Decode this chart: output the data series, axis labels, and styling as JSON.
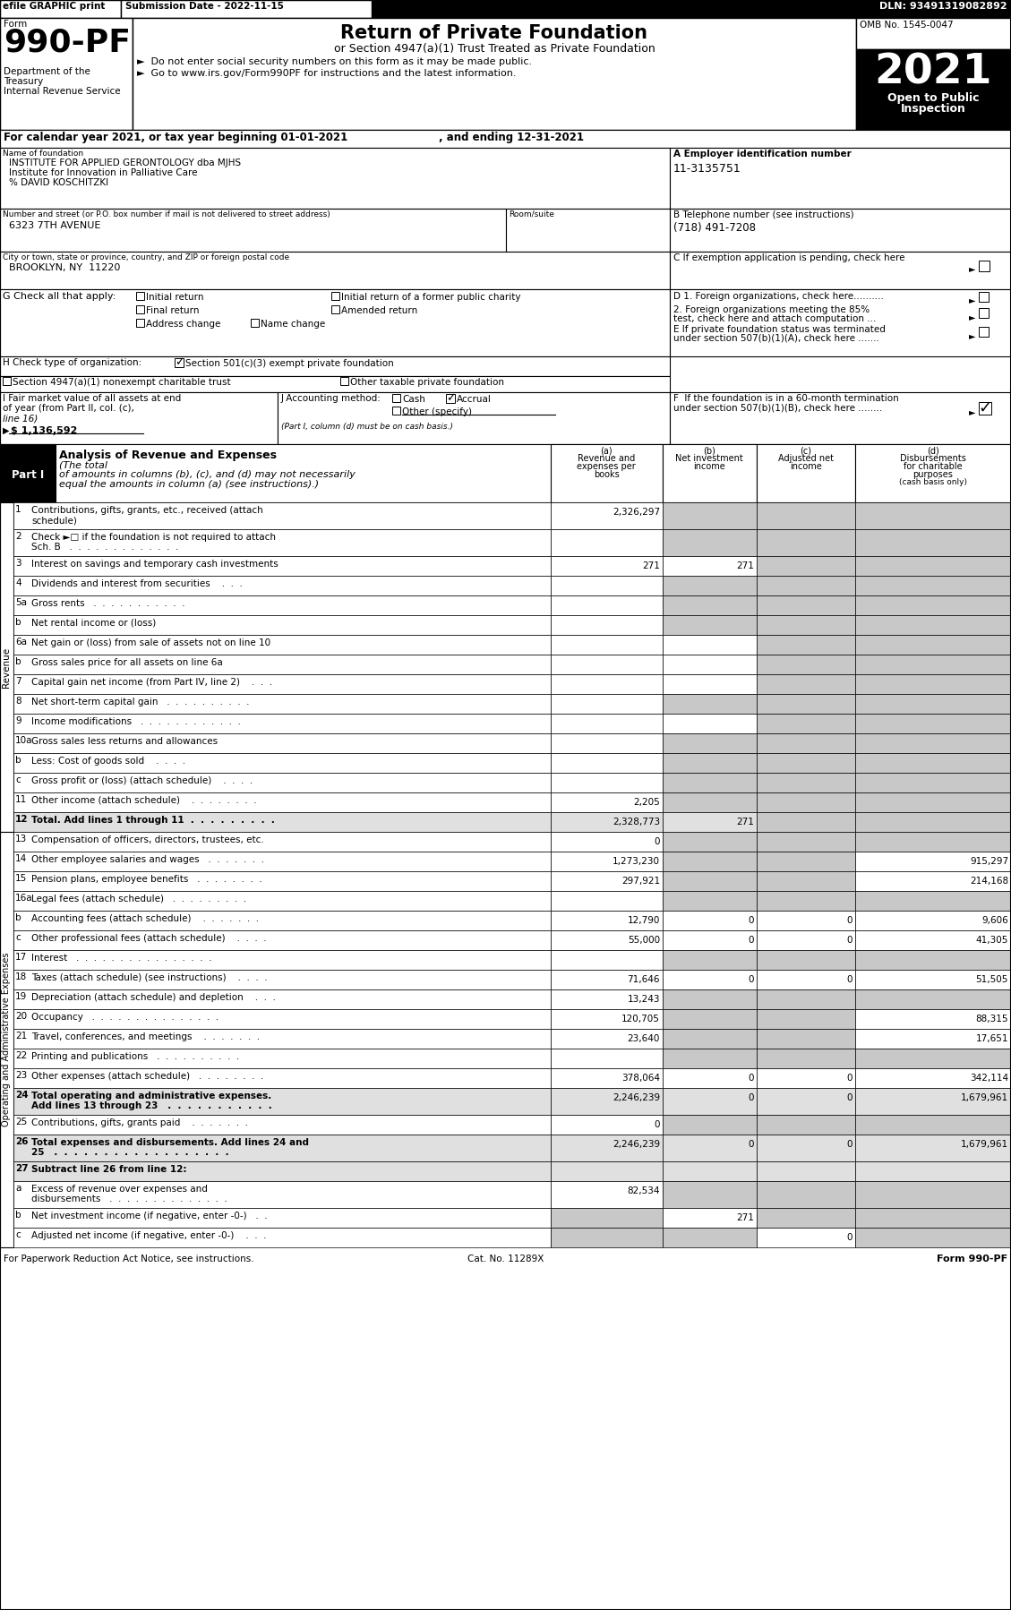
{
  "header_efile": "efile GRAPHIC print",
  "header_submission": "Submission Date - 2022-11-15",
  "header_dln": "DLN: 93491319082892",
  "form_number": "990-PF",
  "omb": "OMB No. 1545-0047",
  "title": "Return of Private Foundation",
  "subtitle": "or Section 4947(a)(1) Trust Treated as Private Foundation",
  "bullet1": "►  Do not enter social security numbers on this form as it may be made public.",
  "bullet2": "►  Go to www.irs.gov/Form990PF for instructions and the latest information.",
  "year": "2021",
  "open_public": "Open to Public\nInspection",
  "calendar_line1": "For calendar year 2021, or tax year beginning 01-01-2021",
  "calendar_line2": ", and ending 12-31-2021",
  "name_label": "Name of foundation",
  "name_line1": "INSTITUTE FOR APPLIED GERONTOLOGY dba MJHS",
  "name_line2": "Institute for Innovation in Palliative Care",
  "name_line3": "% DAVID KOSCHITZKI",
  "ein_label": "A Employer identification number",
  "ein": "11-3135751",
  "address_label": "Number and street (or P.O. box number if mail is not delivered to street address)",
  "address": "6323 7TH AVENUE",
  "room_label": "Room/suite",
  "phone_label": "B Telephone number (see instructions)",
  "phone": "(718) 491-7208",
  "city_label": "City or town, state or province, country, and ZIP or foreign postal code",
  "city": "BROOKLYN, NY  11220",
  "c_label": "C If exemption application is pending, check here",
  "g_label": "G Check all that apply:",
  "d1_label": "D 1. Foreign organizations, check here..........",
  "d2_line1": "2. Foreign organizations meeting the 85%",
  "d2_line2": "test, check here and attach computation ...",
  "e_line1": "E If private foundation status was terminated",
  "e_line2": "under section 507(b)(1)(A), check here .......",
  "h_label": "H Check type of organization:",
  "h_checked": "Section 501(c)(3) exempt private foundation",
  "h_unch1": "Section 4947(a)(1) nonexempt charitable trust",
  "h_unch2": "Other taxable private foundation",
  "i_line1": "I Fair market value of all assets at end",
  "i_line2": "of year (from Part II, col. (c),",
  "i_line3": "line 16)",
  "i_arrow": "▶",
  "i_value": "$ 1,136,592",
  "j_label": "J Accounting method:",
  "j_cash": "Cash",
  "j_accrual": "Accrual",
  "j_other": "Other (specify)",
  "j_note": "(Part I, column (d) must be on cash basis.)",
  "f_line1": "F  If the foundation is in a 60-month termination",
  "f_line2": "under section 507(b)(1)(B), check here ........",
  "part1_label": "Part I",
  "part1_title": "Analysis of Revenue and Expenses",
  "part1_note1": "(The total",
  "part1_note2": "of amounts in columns (b), (c), and (d) may not necessarily",
  "part1_note3": "equal the amounts in column (a) (see instructions).)",
  "col_headers": [
    {
      "lines": [
        "(a)",
        "Revenue and",
        "expenses per",
        "books"
      ]
    },
    {
      "lines": [
        "(b)",
        "Net investment",
        "income"
      ]
    },
    {
      "lines": [
        "(c)",
        "Adjusted net",
        "income"
      ]
    },
    {
      "lines": [
        "(d)",
        "Disbursements",
        "for charitable",
        "purposes",
        "(cash basis only)"
      ]
    }
  ],
  "rows": [
    {
      "num": "1",
      "label": [
        "Contributions, gifts, grants, etc., received (attach",
        "schedule)"
      ],
      "a": "2,326,297",
      "b": "",
      "c": "",
      "d": "",
      "gray_b": true,
      "gray_c": true,
      "gray_d": true
    },
    {
      "num": "2",
      "label": [
        "Check ►□ if the foundation is not required to attach",
        "Sch. B   .  .  .  .  .  .  .  .  .  .  .  .  ."
      ],
      "a": "",
      "b": "",
      "c": "",
      "d": "",
      "gray_b": true,
      "gray_c": true,
      "gray_d": true
    },
    {
      "num": "3",
      "label": [
        "Interest on savings and temporary cash investments"
      ],
      "a": "271",
      "b": "271",
      "c": "",
      "d": "",
      "gray_c": true,
      "gray_d": true
    },
    {
      "num": "4",
      "label": [
        "Dividends and interest from securities    .  .  ."
      ],
      "a": "",
      "b": "",
      "c": "",
      "d": "",
      "gray_b": true,
      "gray_c": true,
      "gray_d": true
    },
    {
      "num": "5a",
      "label": [
        "Gross rents   .  .  .  .  .  .  .  .  .  .  ."
      ],
      "a": "",
      "b": "",
      "c": "",
      "d": "",
      "gray_b": true,
      "gray_c": true,
      "gray_d": true
    },
    {
      "num": "b",
      "label": [
        "Net rental income or (loss)"
      ],
      "a": "",
      "b": "",
      "c": "",
      "d": "",
      "gray_b": true,
      "gray_c": true,
      "gray_d": true,
      "underline_a": true
    },
    {
      "num": "6a",
      "label": [
        "Net gain or (loss) from sale of assets not on line 10"
      ],
      "a": "",
      "b": "",
      "c": "",
      "d": "",
      "gray_c": true,
      "gray_d": true
    },
    {
      "num": "b",
      "label": [
        "Gross sales price for all assets on line 6a"
      ],
      "a": "",
      "b": "",
      "c": "",
      "d": "",
      "gray_c": true,
      "gray_d": true,
      "underline_a": true
    },
    {
      "num": "7",
      "label": [
        "Capital gain net income (from Part IV, line 2)    .  .  ."
      ],
      "a": "",
      "b": "",
      "c": "",
      "d": "",
      "gray_c": true,
      "gray_d": true
    },
    {
      "num": "8",
      "label": [
        "Net short-term capital gain   .  .  .  .  .  .  .  .  .  ."
      ],
      "a": "",
      "b": "",
      "c": "",
      "d": "",
      "gray_b": true,
      "gray_c": true,
      "gray_d": true
    },
    {
      "num": "9",
      "label": [
        "Income modifications   .  .  .  .  .  .  .  .  .  .  .  ."
      ],
      "a": "",
      "b": "",
      "c": "",
      "d": "",
      "gray_c": true,
      "gray_d": true
    },
    {
      "num": "10a",
      "label": [
        "Gross sales less returns and allowances"
      ],
      "a": "",
      "b": "",
      "c": "",
      "d": "",
      "gray_b": true,
      "gray_c": true,
      "gray_d": true,
      "underline_a": true
    },
    {
      "num": "b",
      "label": [
        "Less: Cost of goods sold    .  .  .  ."
      ],
      "a": "",
      "b": "",
      "c": "",
      "d": "",
      "gray_b": true,
      "gray_c": true,
      "gray_d": true,
      "underline_a": true
    },
    {
      "num": "c",
      "label": [
        "Gross profit or (loss) (attach schedule)    .  .  .  ."
      ],
      "a": "",
      "b": "",
      "c": "",
      "d": "",
      "gray_b": true,
      "gray_c": true,
      "gray_d": true
    },
    {
      "num": "11",
      "label": [
        "Other income (attach schedule)    .  .  .  .  .  .  .  ."
      ],
      "a": "2,205",
      "b": "",
      "c": "",
      "d": "",
      "gray_b": true,
      "gray_c": true,
      "gray_d": true
    },
    {
      "num": "12",
      "label": [
        "Total. Add lines 1 through 11  .  .  .  .  .  .  .  .  ."
      ],
      "a": "2,328,773",
      "b": "271",
      "c": "",
      "d": "",
      "bold": true,
      "gray_c": true,
      "gray_d": true
    },
    {
      "num": "13",
      "label": [
        "Compensation of officers, directors, trustees, etc."
      ],
      "a": "0",
      "b": "",
      "c": "",
      "d": "",
      "gray_b": true,
      "gray_c": true,
      "gray_d": true
    },
    {
      "num": "14",
      "label": [
        "Other employee salaries and wages   .  .  .  .  .  .  ."
      ],
      "a": "1,273,230",
      "b": "",
      "c": "",
      "d": "915,297",
      "gray_b": true,
      "gray_c": true
    },
    {
      "num": "15",
      "label": [
        "Pension plans, employee benefits   .  .  .  .  .  .  .  ."
      ],
      "a": "297,921",
      "b": "",
      "c": "",
      "d": "214,168",
      "gray_b": true,
      "gray_c": true
    },
    {
      "num": "16a",
      "label": [
        "Legal fees (attach schedule)   .  .  .  .  .  .  .  .  ."
      ],
      "a": "",
      "b": "",
      "c": "",
      "d": "",
      "gray_b": true,
      "gray_c": true,
      "gray_d": true
    },
    {
      "num": "b",
      "label": [
        "Accounting fees (attach schedule)    .  .  .  .  .  .  ."
      ],
      "a": "12,790",
      "b": "0",
      "c": "0",
      "d": "9,606",
      "gray_none": true
    },
    {
      "num": "c",
      "label": [
        "Other professional fees (attach schedule)    .  .  .  ."
      ],
      "a": "55,000",
      "b": "0",
      "c": "0",
      "d": "41,305",
      "gray_none": true
    },
    {
      "num": "17",
      "label": [
        "Interest   .  .  .  .  .  .  .  .  .  .  .  .  .  .  .  ."
      ],
      "a": "",
      "b": "",
      "c": "",
      "d": "",
      "gray_b": true,
      "gray_c": true,
      "gray_d": true
    },
    {
      "num": "18",
      "label": [
        "Taxes (attach schedule) (see instructions)    .  .  .  ."
      ],
      "a": "71,646",
      "b": "0",
      "c": "0",
      "d": "51,505",
      "gray_none": true
    },
    {
      "num": "19",
      "label": [
        "Depreciation (attach schedule) and depletion    .  .  ."
      ],
      "a": "13,243",
      "b": "",
      "c": "",
      "d": "",
      "gray_b": true,
      "gray_c": true,
      "gray_d": true
    },
    {
      "num": "20",
      "label": [
        "Occupancy   .  .  .  .  .  .  .  .  .  .  .  .  .  .  ."
      ],
      "a": "120,705",
      "b": "",
      "c": "",
      "d": "88,315",
      "gray_b": true,
      "gray_c": true
    },
    {
      "num": "21",
      "label": [
        "Travel, conferences, and meetings    .  .  .  .  .  .  ."
      ],
      "a": "23,640",
      "b": "",
      "c": "",
      "d": "17,651",
      "gray_b": true,
      "gray_c": true
    },
    {
      "num": "22",
      "label": [
        "Printing and publications   .  .  .  .  .  .  .  .  .  ."
      ],
      "a": "",
      "b": "",
      "c": "",
      "d": "",
      "gray_b": true,
      "gray_c": true,
      "gray_d": true
    },
    {
      "num": "23",
      "label": [
        "Other expenses (attach schedule)   .  .  .  .  .  .  .  ."
      ],
      "a": "378,064",
      "b": "0",
      "c": "0",
      "d": "342,114",
      "gray_none": true
    },
    {
      "num": "24",
      "label": [
        "Total operating and administrative expenses.",
        "Add lines 13 through 23   .  .  .  .  .  .  .  .  .  .  ."
      ],
      "a": "2,246,239",
      "b": "0",
      "c": "0",
      "d": "1,679,961",
      "bold": true,
      "gray_none": true
    },
    {
      "num": "25",
      "label": [
        "Contributions, gifts, grants paid    .  .  .  .  .  .  ."
      ],
      "a": "0",
      "b": "",
      "c": "",
      "d": "",
      "gray_b": true,
      "gray_c": true,
      "gray_d": true
    },
    {
      "num": "26",
      "label": [
        "Total expenses and disbursements. Add lines 24 and",
        "25   .  .  .  .  .  .  .  .  .  .  .  .  .  .  .  .  .  ."
      ],
      "a": "2,246,239",
      "b": "0",
      "c": "0",
      "d": "1,679,961",
      "bold": true,
      "gray_none": true
    },
    {
      "num": "27",
      "label": [
        "Subtract line 26 from line 12:"
      ],
      "a": "",
      "b": "",
      "c": "",
      "d": "",
      "bold": true,
      "header_only": true,
      "gray_none": true
    },
    {
      "num": "a",
      "label": [
        "Excess of revenue over expenses and",
        "disbursements   .  .  .  .  .  .  .  .  .  .  .  .  .  ."
      ],
      "a": "82,534",
      "b": "",
      "c": "",
      "d": "",
      "gray_b": true,
      "gray_c": true,
      "gray_d": true
    },
    {
      "num": "b",
      "label": [
        "Net investment income (if negative, enter -0-)   .  ."
      ],
      "a": "",
      "b": "271",
      "c": "",
      "d": "",
      "gray_a": true,
      "gray_c": true,
      "gray_d": true
    },
    {
      "num": "c",
      "label": [
        "Adjusted net income (if negative, enter -0-)    .  .  ."
      ],
      "a": "",
      "b": "",
      "c": "0",
      "d": "",
      "gray_a": true,
      "gray_b": true,
      "gray_d": true
    }
  ],
  "footer_left": "For Paperwork Reduction Act Notice, see instructions.",
  "footer_cat": "Cat. No. 11289X",
  "footer_right": "Form 990-PF"
}
